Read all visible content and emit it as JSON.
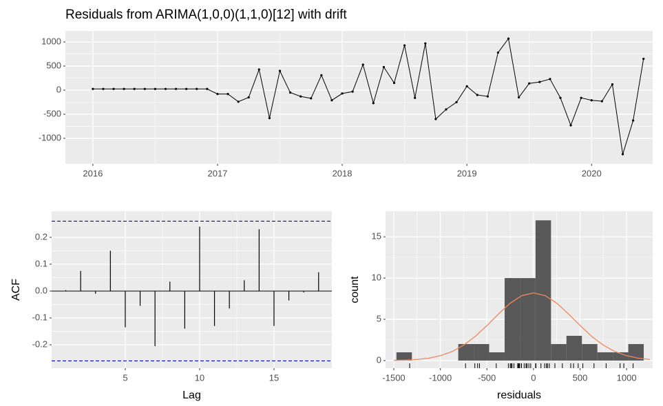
{
  "chart_data": [
    {
      "type": "line",
      "title": "Residuals from ARIMA(1,0,0)(1,1,0)[12] with drift",
      "x": [
        2016,
        2016.0833,
        2016.1667,
        2016.25,
        2016.3333,
        2016.4167,
        2016.5,
        2016.5833,
        2016.6667,
        2016.75,
        2016.8333,
        2016.9167,
        2017,
        2017.0833,
        2017.1667,
        2017.25,
        2017.3333,
        2017.4167,
        2017.5,
        2017.5833,
        2017.6667,
        2017.75,
        2017.8333,
        2017.9167,
        2018,
        2018.0833,
        2018.1667,
        2018.25,
        2018.3333,
        2018.4167,
        2018.5,
        2018.5833,
        2018.6667,
        2018.75,
        2018.8333,
        2018.9167,
        2019,
        2019.0833,
        2019.1667,
        2019.25,
        2019.3333,
        2019.4167,
        2019.5,
        2019.5833,
        2019.6667,
        2019.75,
        2019.8333,
        2019.9167,
        2020,
        2020.0833,
        2020.1667,
        2020.25,
        2020.3333,
        2020.4167
      ],
      "values": [
        25,
        25,
        25,
        25,
        25,
        25,
        25,
        25,
        25,
        25,
        25,
        25,
        -80,
        -80,
        -240,
        -150,
        430,
        -580,
        400,
        -50,
        -130,
        -170,
        310,
        -210,
        -70,
        -30,
        530,
        -270,
        480,
        150,
        930,
        -160,
        970,
        -600,
        -400,
        -250,
        80,
        -100,
        -130,
        780,
        1070,
        -150,
        140,
        170,
        230,
        -160,
        -730,
        -160,
        -210,
        -230,
        120,
        -1330,
        -630,
        650
      ],
      "color": "#000000",
      "xlim": [
        2015.78,
        2020.49
      ],
      "xticks": [
        2016,
        2017,
        2018,
        2019,
        2020
      ],
      "ylim": [
        -1529,
        1229
      ],
      "yticks": [
        -1000,
        -500,
        0,
        500,
        1000
      ],
      "grid": true
    },
    {
      "type": "bar",
      "xlabel": "Lag",
      "ylabel": "ACF",
      "x": [
        1,
        2,
        3,
        4,
        5,
        6,
        7,
        8,
        9,
        10,
        11,
        12,
        13,
        14,
        15,
        16,
        17,
        18
      ],
      "values": [
        0.003,
        0.075,
        -0.01,
        0.15,
        -0.135,
        -0.055,
        -0.205,
        0.035,
        -0.14,
        0.24,
        -0.13,
        -0.065,
        0.04,
        0.23,
        -0.13,
        -0.035,
        -0.005,
        0.07
      ],
      "color": "#000000",
      "ci": [
        0.26,
        -0.26
      ],
      "ci_color": "#0000ff",
      "xlim": [
        0.05,
        18.89
      ],
      "xticks": [
        5,
        10,
        15
      ],
      "ylim": [
        -0.287,
        0.297
      ],
      "yticks": [
        -0.2,
        -0.1,
        {
          "value": 0,
          "label": "0.0"
        },
        0.1,
        0.2
      ],
      "grid": true
    },
    {
      "type": "histogram",
      "xlabel": "residuals",
      "ylabel": "count",
      "bins": [
        -1472,
        -1306,
        -1140,
        -974,
        -808,
        -642,
        -476,
        -310,
        -144,
        22,
        188,
        354,
        520,
        686,
        852,
        1018,
        1184
      ],
      "counts": [
        1,
        0,
        0,
        0,
        2,
        2,
        1,
        10,
        10,
        17,
        2,
        3,
        2,
        1,
        1,
        2
      ],
      "color": "#595959",
      "density": {
        "color": "#f08860",
        "x": [
          -1500,
          -1375,
          -1250,
          -1125,
          -1000,
          -875,
          -750,
          -625,
          -500,
          -375,
          -250,
          -125,
          0,
          125,
          250,
          375,
          500,
          625,
          750,
          875,
          1000,
          1125,
          1250
        ],
        "y": [
          0.022,
          0.057,
          0.13,
          0.29,
          0.59,
          1.09,
          1.87,
          2.94,
          4.25,
          5.66,
          6.96,
          7.87,
          8.2,
          7.87,
          6.96,
          5.66,
          4.25,
          2.94,
          1.87,
          1.09,
          0.59,
          0.29,
          0.13
        ]
      },
      "xlim": [
        -1589,
        1280
      ],
      "xticks": [
        -1500,
        -1000,
        -500,
        0,
        500,
        1000
      ],
      "ylim": [
        -0.92,
        18.1
      ],
      "yticks": [
        0,
        5,
        10,
        15
      ],
      "grid": true
    }
  ]
}
